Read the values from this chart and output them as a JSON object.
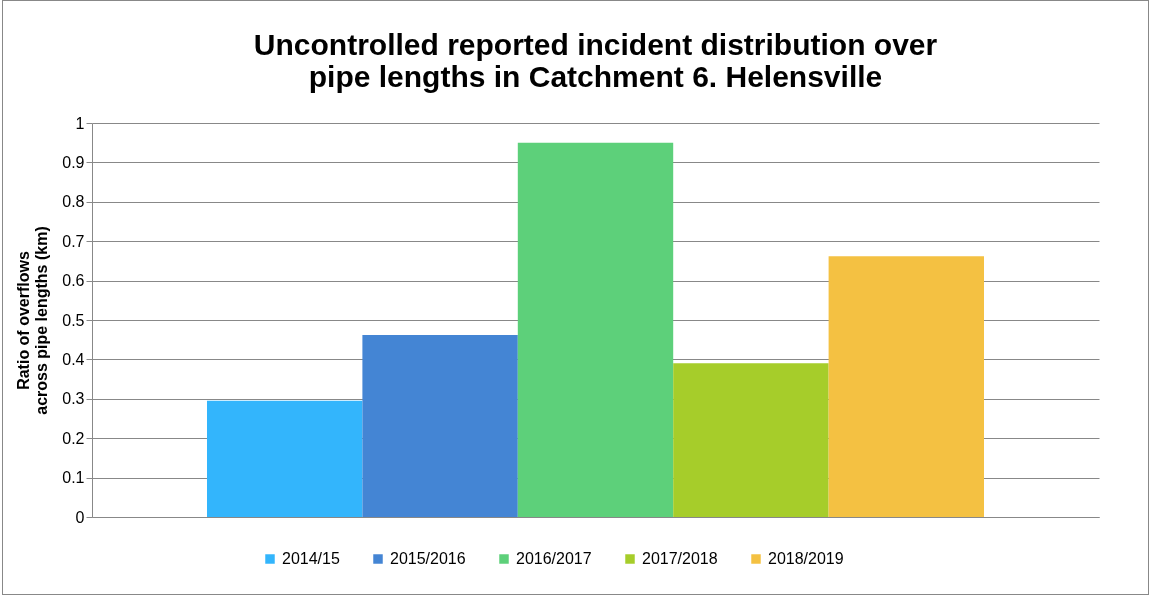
{
  "chart_data": {
    "type": "bar",
    "title": "Uncontrolled reported incident distribution over\npipe lengths in Catchment 6. Helensville",
    "ylabel": "Ratio of overflows\nacross pipe lengths (km)",
    "categories": [
      null
    ],
    "series": [
      {
        "name": "2014/15",
        "color": "#33b5fc",
        "values": [
          0.295
        ]
      },
      {
        "name": "2015/2016",
        "color": "#4485d4",
        "values": [
          0.462
        ]
      },
      {
        "name": "2016/2017",
        "color": "#5dd07a",
        "values": [
          0.95
        ]
      },
      {
        "name": "2017/2018",
        "color": "#a6cd2a",
        "values": [
          0.39
        ]
      },
      {
        "name": "2018/2019",
        "color": "#f4c142",
        "values": [
          0.662
        ]
      }
    ],
    "ylim": [
      0,
      1
    ],
    "yticks": [
      0,
      0.1,
      0.2,
      0.3,
      0.4,
      0.5,
      0.6,
      0.7,
      0.8,
      0.9,
      1
    ],
    "grid": "y",
    "legend": "bottom",
    "tick_labels": "y"
  }
}
